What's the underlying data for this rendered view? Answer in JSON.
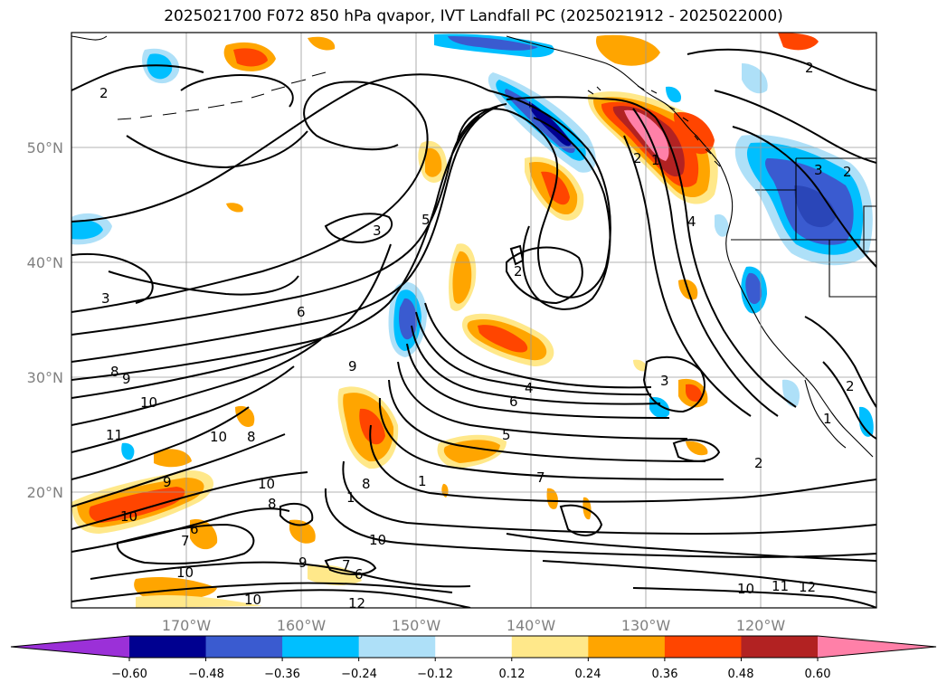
{
  "title": "2025021700 F072 850 hPa qvapor, IVT Landfall PC (2025021912 - 2025022000)",
  "lat_labels": [
    "50°N",
    "40°N",
    "30°N",
    "20°N"
  ],
  "lon_labels": [
    "170°W",
    "160°W",
    "150°W",
    "140°W",
    "130°W",
    "120°W"
  ],
  "colorbar": {
    "colors": [
      "#9b30d8",
      "#000090",
      "#3a5bd0",
      "#00bfff",
      "#aee0f8",
      "#ffffff",
      "#ffe88a",
      "#ffa500",
      "#ff4500",
      "#b22222",
      "#ff80a8"
    ],
    "tick_labels": [
      "−0.60",
      "−0.48",
      "−0.36",
      "−0.24",
      "−0.12",
      "0.12",
      "0.24",
      "0.36",
      "0.48",
      "0.60"
    ],
    "extend": "both"
  },
  "contour_labels": [
    "2",
    "2",
    "3",
    "3",
    "5",
    "2",
    "6",
    "9",
    "8",
    "9",
    "10",
    "11",
    "10",
    "8",
    "10",
    "9",
    "8",
    "1",
    "8",
    "7",
    "6",
    "10",
    "10",
    "9",
    "7",
    "6",
    "10",
    "12",
    "10",
    "1",
    "4",
    "6",
    "5",
    "7",
    "4",
    "3",
    "2",
    "2",
    "2",
    "3",
    "1",
    "2",
    "1",
    "10",
    "11",
    "12"
  ]
}
